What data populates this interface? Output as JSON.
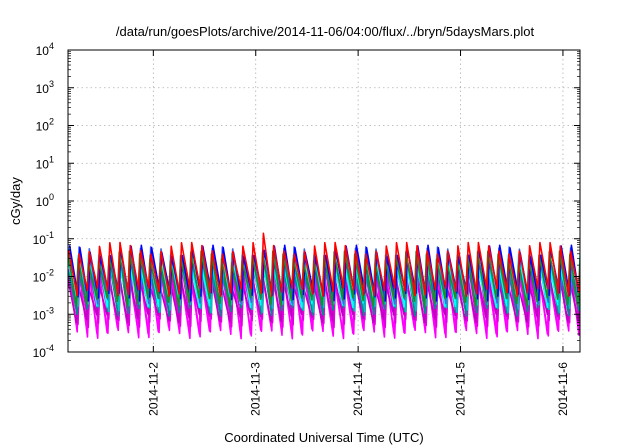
{
  "chart_data": {
    "type": "line",
    "title": "/data/run/goesPlots/archive/2014-11-06/04:00/flux/../bryn/5daysMars.plot",
    "xlabel": "Coordinated Universal Time (UTC)",
    "ylabel": "cGy/day",
    "x_range": [
      "2014-11-01T04:00",
      "2014-11-06T04:00"
    ],
    "ylim": [
      0.0001,
      10000
    ],
    "yscale": "log",
    "grid": true,
    "x_ticks": [
      {
        "label": "2014-11-2",
        "date": "2014-11-02T00:00"
      },
      {
        "label": "2014-11-3",
        "date": "2014-11-03T00:00"
      },
      {
        "label": "2014-11-4",
        "date": "2014-11-04T00:00"
      },
      {
        "label": "2014-11-5",
        "date": "2014-11-05T00:00"
      },
      {
        "label": "2014-11-6",
        "date": "2014-11-06T00:00"
      }
    ],
    "y_ticks": [
      {
        "base": "10",
        "exp": "-4",
        "value": 0.0001
      },
      {
        "base": "10",
        "exp": "-3",
        "value": 0.001
      },
      {
        "base": "10",
        "exp": "-2",
        "value": 0.01
      },
      {
        "base": "10",
        "exp": "-1",
        "value": 0.1
      },
      {
        "base": "10",
        "exp": "0",
        "value": 1
      },
      {
        "base": "10",
        "exp": "1",
        "value": 10
      },
      {
        "base": "10",
        "exp": "2",
        "value": 100
      },
      {
        "base": "10",
        "exp": "3",
        "value": 1000
      },
      {
        "base": "10",
        "exp": "4",
        "value": 10000
      }
    ],
    "cycles_per_day": 10,
    "series": [
      {
        "color": "#ff00ff",
        "peak": 0.015,
        "trough": 0.0004
      },
      {
        "color": "#ff00ff",
        "peak": 0.012,
        "trough": 0.0003
      },
      {
        "color": "#e000e0",
        "peak": 0.02,
        "trough": 0.0006
      },
      {
        "color": "#c000c0",
        "peak": 0.008,
        "trough": 0.0008
      },
      {
        "color": "#008b8b",
        "peak": 0.018,
        "trough": 0.0012
      },
      {
        "color": "#00c0c0",
        "peak": 0.022,
        "trough": 0.0015
      },
      {
        "color": "#00ffff",
        "peak": 0.03,
        "trough": 0.002
      },
      {
        "color": "#4169e1",
        "peak": 0.045,
        "trough": 0.0025
      },
      {
        "color": "#0000ff",
        "peak": 0.05,
        "trough": 0.003
      },
      {
        "color": "#228b22",
        "peak": 0.035,
        "trough": 0.0022
      },
      {
        "color": "#ff0000",
        "peak": 0.06,
        "trough": 0.004
      }
    ]
  }
}
